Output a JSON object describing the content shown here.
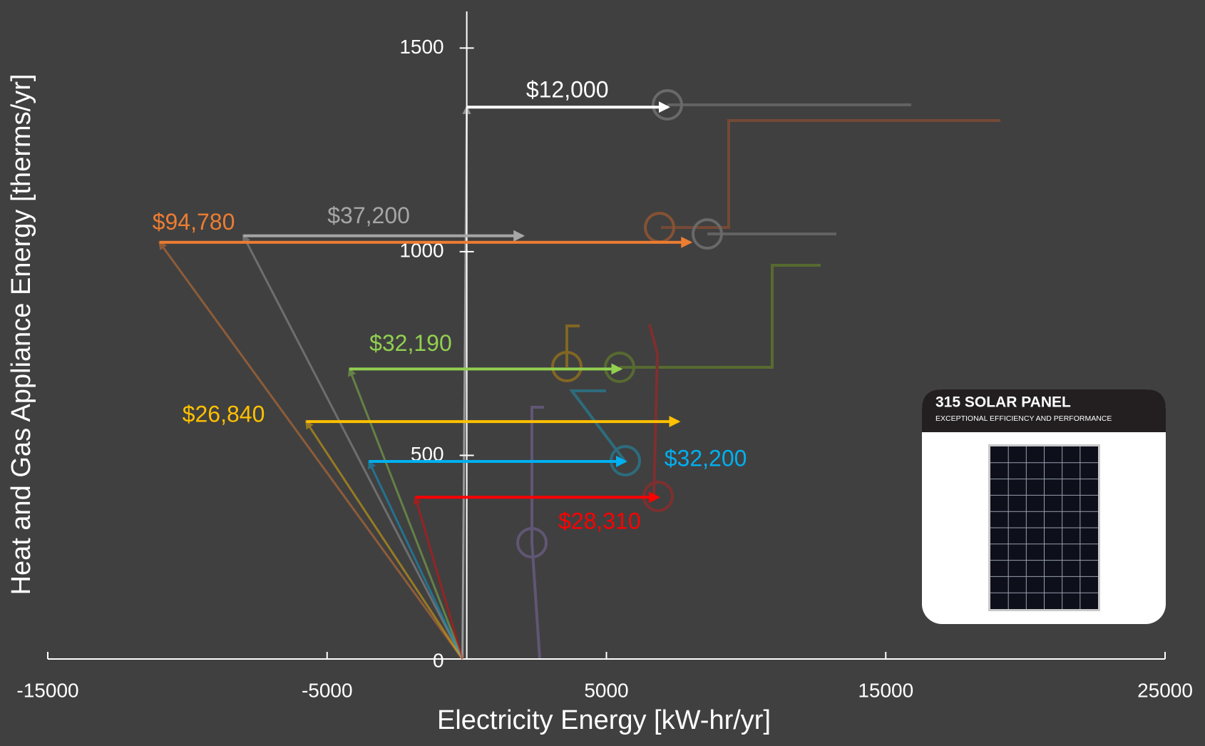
{
  "chart_data": {
    "type": "arrow",
    "xlabel": "Electricity Energy [kW-hr/yr]",
    "ylabel": "Heat and Gas Appliance Energy [therms/yr]",
    "xlim": [
      -15000,
      25000
    ],
    "xticks": [
      -15000,
      -5000,
      5000,
      15000,
      25000
    ],
    "ylim": [
      0,
      1590
    ],
    "yticks": [
      0,
      500,
      1000,
      1500
    ],
    "series": [
      {
        "name": "$12,000",
        "color": "#ffffff",
        "x": [
          0,
          7200
        ],
        "values": [
          1355,
          1355
        ]
      },
      {
        "name": "$37,200",
        "color": "#a6a6a6",
        "x": [
          -8000,
          2000
        ],
        "values": [
          1039,
          1039
        ]
      },
      {
        "name": "$94,780",
        "color": "#ed7d31",
        "x": [
          -11000,
          8000
        ],
        "values": [
          1023,
          1023
        ]
      },
      {
        "name": "$32,190",
        "color": "#92d050",
        "x": [
          -4200,
          5500
        ],
        "values": [
          712,
          712
        ]
      },
      {
        "name": "$26,840",
        "color": "#ffc000",
        "x": [
          -5750,
          7570
        ],
        "values": [
          583,
          583
        ]
      },
      {
        "name": "$32,200",
        "color": "#00b0f0",
        "x": [
          -3500,
          5670
        ],
        "values": [
          485,
          485
        ]
      },
      {
        "name": "$28,310",
        "color": "#ff0000",
        "x": [
          -1840,
          6850
        ],
        "values": [
          397,
          397
        ]
      }
    ],
    "inset": {
      "title": "315 SOLAR PANEL",
      "subtitle": "EXCEPTIONAL EFFICIENCY AND PERFORMANCE"
    }
  }
}
